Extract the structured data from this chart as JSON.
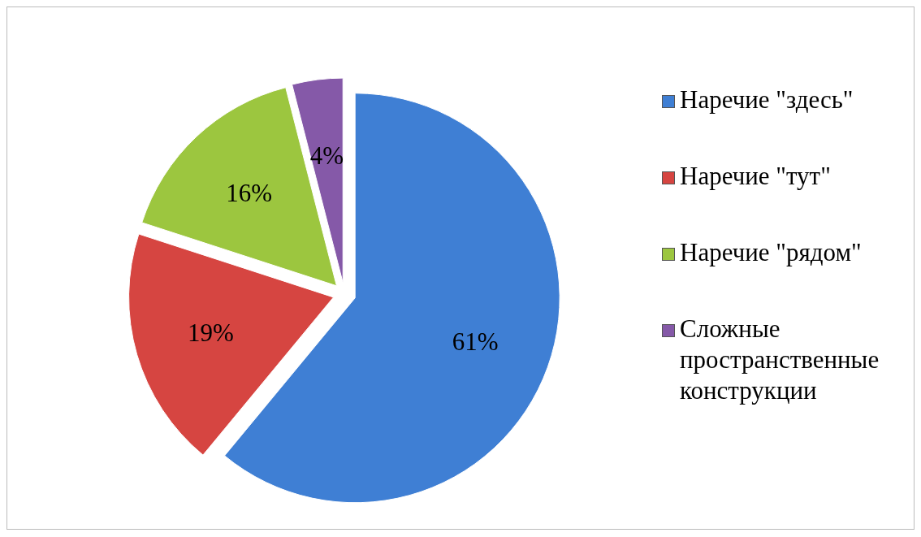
{
  "chart_data": {
    "type": "pie",
    "categories": [
      "Наречие \"здесь\"",
      "Наречие \"тут\"",
      "Наречие \"рядом\"",
      "Сложные пространственные конструкции"
    ],
    "values": [
      61,
      19,
      16,
      4
    ],
    "colors": [
      "#3f7fd4",
      "#d64541",
      "#9cc63f",
      "#8559a8"
    ],
    "value_labels": [
      "61%",
      "19%",
      "16%",
      "4%"
    ],
    "legend": "right"
  }
}
